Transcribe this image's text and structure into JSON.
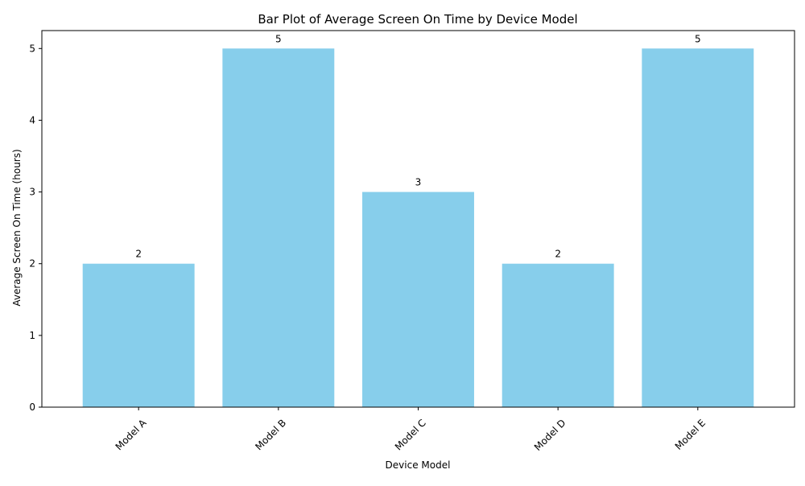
{
  "chart_data": {
    "type": "bar",
    "title": "Bar Plot of Average Screen On Time by Device Model",
    "xlabel": "Device Model",
    "ylabel": "Average Screen On Time (hours)",
    "categories": [
      "Model A",
      "Model B",
      "Model C",
      "Model D",
      "Model E"
    ],
    "values": [
      2,
      5,
      3,
      2,
      5
    ],
    "data_labels": [
      "2",
      "5",
      "3",
      "2",
      "5"
    ],
    "yticks": [
      0,
      1,
      2,
      3,
      4,
      5
    ],
    "ylim": [
      0,
      5.25
    ],
    "bar_color": "#87ceeb",
    "grid": false,
    "legend": "none",
    "xtick_rotation_deg": 45
  }
}
